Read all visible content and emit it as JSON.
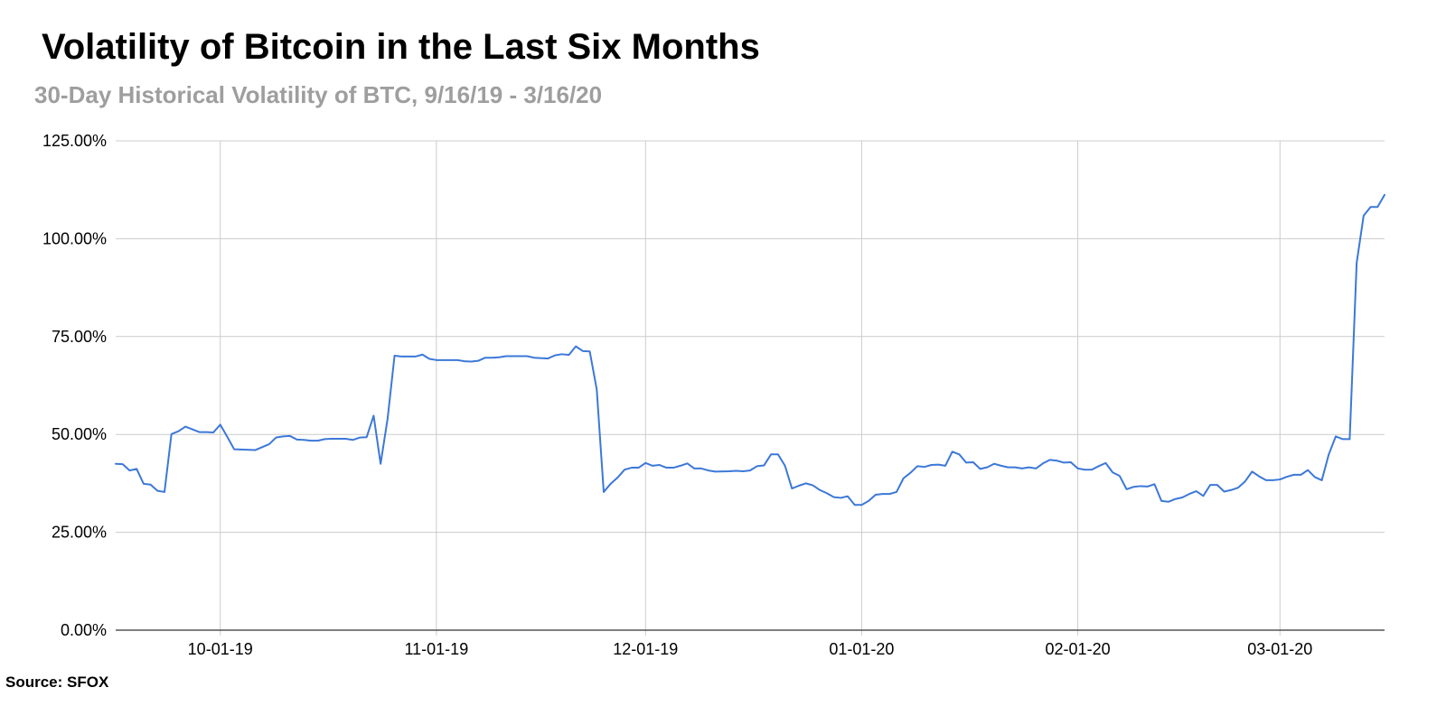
{
  "source_label": "Source: SFOX",
  "chart_data": {
    "type": "line",
    "title": "Volatility of Bitcoin in the Last Six Months",
    "subtitle": "30-Day Historical Volatility of BTC, 9/16/19 - 3/16/20",
    "xlabel": "",
    "ylabel": "",
    "x_range": [
      "2019-09-16",
      "2020-03-16"
    ],
    "ylim": [
      0,
      125
    ],
    "y_ticks": [
      0,
      25,
      50,
      75,
      100,
      125
    ],
    "y_tick_labels": [
      "0.00%",
      "25.00%",
      "50.00%",
      "75.00%",
      "100.00%",
      "125.00%"
    ],
    "x_ticks": [
      "2019-10-01",
      "2019-11-01",
      "2019-12-01",
      "2020-01-01",
      "2020-02-01",
      "2020-03-01"
    ],
    "x_tick_labels": [
      "10-01-19",
      "11-01-19",
      "12-01-19",
      "01-01-20",
      "02-01-20",
      "03-01-20"
    ],
    "grid": true,
    "line_color": "#3c78d8",
    "series": [
      {
        "values": [
          [
            "2019-09-16",
            42.5
          ],
          [
            "2019-09-17",
            42.4
          ],
          [
            "2019-09-18",
            40.8
          ],
          [
            "2019-09-19",
            41.2
          ],
          [
            "2019-09-20",
            37.4
          ],
          [
            "2019-09-21",
            37.2
          ],
          [
            "2019-09-22",
            35.6
          ],
          [
            "2019-09-23",
            35.3
          ],
          [
            "2019-09-24",
            50.1
          ],
          [
            "2019-09-25",
            50.8
          ],
          [
            "2019-09-26",
            52.0
          ],
          [
            "2019-09-27",
            51.3
          ],
          [
            "2019-09-28",
            50.6
          ],
          [
            "2019-09-29",
            50.6
          ],
          [
            "2019-09-30",
            50.5
          ],
          [
            "2019-10-01",
            52.5
          ],
          [
            "2019-10-02",
            49.4
          ],
          [
            "2019-10-03",
            46.2
          ],
          [
            "2019-10-06",
            46.0
          ],
          [
            "2019-10-08",
            47.5
          ],
          [
            "2019-10-09",
            49.2
          ],
          [
            "2019-10-10",
            49.5
          ],
          [
            "2019-10-11",
            49.6
          ],
          [
            "2019-10-12",
            48.7
          ],
          [
            "2019-10-13",
            48.6
          ],
          [
            "2019-10-14",
            48.4
          ],
          [
            "2019-10-15",
            48.4
          ],
          [
            "2019-10-16",
            48.8
          ],
          [
            "2019-10-17",
            48.9
          ],
          [
            "2019-10-18",
            48.9
          ],
          [
            "2019-10-19",
            48.9
          ],
          [
            "2019-10-20",
            48.6
          ],
          [
            "2019-10-21",
            49.2
          ],
          [
            "2019-10-22",
            49.3
          ],
          [
            "2019-10-23",
            54.8
          ],
          [
            "2019-10-24",
            42.5
          ],
          [
            "2019-10-25",
            54.0
          ],
          [
            "2019-10-26",
            70.1
          ],
          [
            "2019-10-27",
            69.9
          ],
          [
            "2019-10-28",
            69.9
          ],
          [
            "2019-10-29",
            69.9
          ],
          [
            "2019-10-30",
            70.4
          ],
          [
            "2019-10-31",
            69.3
          ],
          [
            "2019-11-01",
            69.0
          ],
          [
            "2019-11-04",
            69.0
          ],
          [
            "2019-11-05",
            68.7
          ],
          [
            "2019-11-06",
            68.6
          ],
          [
            "2019-11-07",
            68.8
          ],
          [
            "2019-11-08",
            69.6
          ],
          [
            "2019-11-09",
            69.6
          ],
          [
            "2019-11-10",
            69.7
          ],
          [
            "2019-11-11",
            70.0
          ],
          [
            "2019-11-14",
            70.0
          ],
          [
            "2019-11-15",
            69.6
          ],
          [
            "2019-11-17",
            69.4
          ],
          [
            "2019-11-18",
            70.2
          ],
          [
            "2019-11-19",
            70.5
          ],
          [
            "2019-11-20",
            70.3
          ],
          [
            "2019-11-21",
            72.5
          ],
          [
            "2019-11-22",
            71.3
          ],
          [
            "2019-11-23",
            71.2
          ],
          [
            "2019-11-24",
            61.5
          ],
          [
            "2019-11-25",
            35.3
          ],
          [
            "2019-11-26",
            37.4
          ],
          [
            "2019-11-27",
            39.0
          ],
          [
            "2019-11-28",
            41.0
          ],
          [
            "2019-11-29",
            41.5
          ],
          [
            "2019-11-30",
            41.5
          ],
          [
            "2019-12-01",
            42.7
          ],
          [
            "2019-12-02",
            42.0
          ],
          [
            "2019-12-03",
            42.2
          ],
          [
            "2019-12-04",
            41.5
          ],
          [
            "2019-12-05",
            41.5
          ],
          [
            "2019-12-06",
            42.0
          ],
          [
            "2019-12-07",
            42.6
          ],
          [
            "2019-12-08",
            41.3
          ],
          [
            "2019-12-09",
            41.3
          ],
          [
            "2019-12-10",
            40.8
          ],
          [
            "2019-12-11",
            40.5
          ],
          [
            "2019-12-13",
            40.6
          ],
          [
            "2019-12-14",
            40.7
          ],
          [
            "2019-12-15",
            40.6
          ],
          [
            "2019-12-16",
            40.8
          ],
          [
            "2019-12-17",
            41.9
          ],
          [
            "2019-12-18",
            42.1
          ],
          [
            "2019-12-19",
            44.9
          ],
          [
            "2019-12-20",
            44.9
          ],
          [
            "2019-12-21",
            42.0
          ],
          [
            "2019-12-22",
            36.2
          ],
          [
            "2019-12-23",
            36.9
          ],
          [
            "2019-12-24",
            37.5
          ],
          [
            "2019-12-25",
            37.0
          ],
          [
            "2019-12-26",
            35.8
          ],
          [
            "2019-12-27",
            35.0
          ],
          [
            "2019-12-28",
            34.0
          ],
          [
            "2019-12-29",
            33.8
          ],
          [
            "2019-12-30",
            34.2
          ],
          [
            "2019-12-31",
            32.0
          ],
          [
            "2020-01-01",
            32.0
          ],
          [
            "2020-01-02",
            33.0
          ],
          [
            "2020-01-03",
            34.6
          ],
          [
            "2020-01-04",
            34.8
          ],
          [
            "2020-01-05",
            34.8
          ],
          [
            "2020-01-06",
            35.3
          ],
          [
            "2020-01-07",
            38.8
          ],
          [
            "2020-01-08",
            40.2
          ],
          [
            "2020-01-09",
            41.9
          ],
          [
            "2020-01-10",
            41.7
          ],
          [
            "2020-01-11",
            42.2
          ],
          [
            "2020-01-12",
            42.3
          ],
          [
            "2020-01-13",
            42.0
          ],
          [
            "2020-01-14",
            45.6
          ],
          [
            "2020-01-15",
            44.9
          ],
          [
            "2020-01-16",
            42.8
          ],
          [
            "2020-01-17",
            42.9
          ],
          [
            "2020-01-18",
            41.2
          ],
          [
            "2020-01-19",
            41.6
          ],
          [
            "2020-01-20",
            42.5
          ],
          [
            "2020-01-21",
            42.0
          ],
          [
            "2020-01-22",
            41.6
          ],
          [
            "2020-01-23",
            41.6
          ],
          [
            "2020-01-24",
            41.3
          ],
          [
            "2020-01-25",
            41.6
          ],
          [
            "2020-01-26",
            41.3
          ],
          [
            "2020-01-27",
            42.6
          ],
          [
            "2020-01-28",
            43.5
          ],
          [
            "2020-01-29",
            43.3
          ],
          [
            "2020-01-30",
            42.8
          ],
          [
            "2020-01-31",
            42.9
          ],
          [
            "2020-02-01",
            41.3
          ],
          [
            "2020-02-02",
            41.0
          ],
          [
            "2020-02-03",
            41.0
          ],
          [
            "2020-02-04",
            41.9
          ],
          [
            "2020-02-05",
            42.7
          ],
          [
            "2020-02-06",
            40.3
          ],
          [
            "2020-02-07",
            39.4
          ],
          [
            "2020-02-08",
            36.0
          ],
          [
            "2020-02-09",
            36.6
          ],
          [
            "2020-02-10",
            36.8
          ],
          [
            "2020-02-11",
            36.7
          ],
          [
            "2020-02-12",
            37.3
          ],
          [
            "2020-02-13",
            33.0
          ],
          [
            "2020-02-14",
            32.8
          ],
          [
            "2020-02-15",
            33.5
          ],
          [
            "2020-02-16",
            33.9
          ],
          [
            "2020-02-17",
            34.8
          ],
          [
            "2020-02-18",
            35.5
          ],
          [
            "2020-02-19",
            34.3
          ],
          [
            "2020-02-20",
            37.1
          ],
          [
            "2020-02-21",
            37.1
          ],
          [
            "2020-02-22",
            35.4
          ],
          [
            "2020-02-23",
            35.8
          ],
          [
            "2020-02-24",
            36.4
          ],
          [
            "2020-02-25",
            38.0
          ],
          [
            "2020-02-26",
            40.5
          ],
          [
            "2020-02-27",
            39.3
          ],
          [
            "2020-02-28",
            38.3
          ],
          [
            "2020-02-29",
            38.3
          ],
          [
            "2020-03-01",
            38.5
          ],
          [
            "2020-03-02",
            39.2
          ],
          [
            "2020-03-03",
            39.7
          ],
          [
            "2020-03-04",
            39.7
          ],
          [
            "2020-03-05",
            40.9
          ],
          [
            "2020-03-06",
            39.1
          ],
          [
            "2020-03-07",
            38.3
          ],
          [
            "2020-03-08",
            44.9
          ],
          [
            "2020-03-09",
            49.5
          ],
          [
            "2020-03-10",
            48.8
          ],
          [
            "2020-03-11",
            48.8
          ],
          [
            "2020-03-12",
            93.8
          ],
          [
            "2020-03-13",
            105.9
          ],
          [
            "2020-03-14",
            108.1
          ],
          [
            "2020-03-15",
            108.1
          ],
          [
            "2020-03-16",
            111.2
          ]
        ]
      }
    ]
  }
}
